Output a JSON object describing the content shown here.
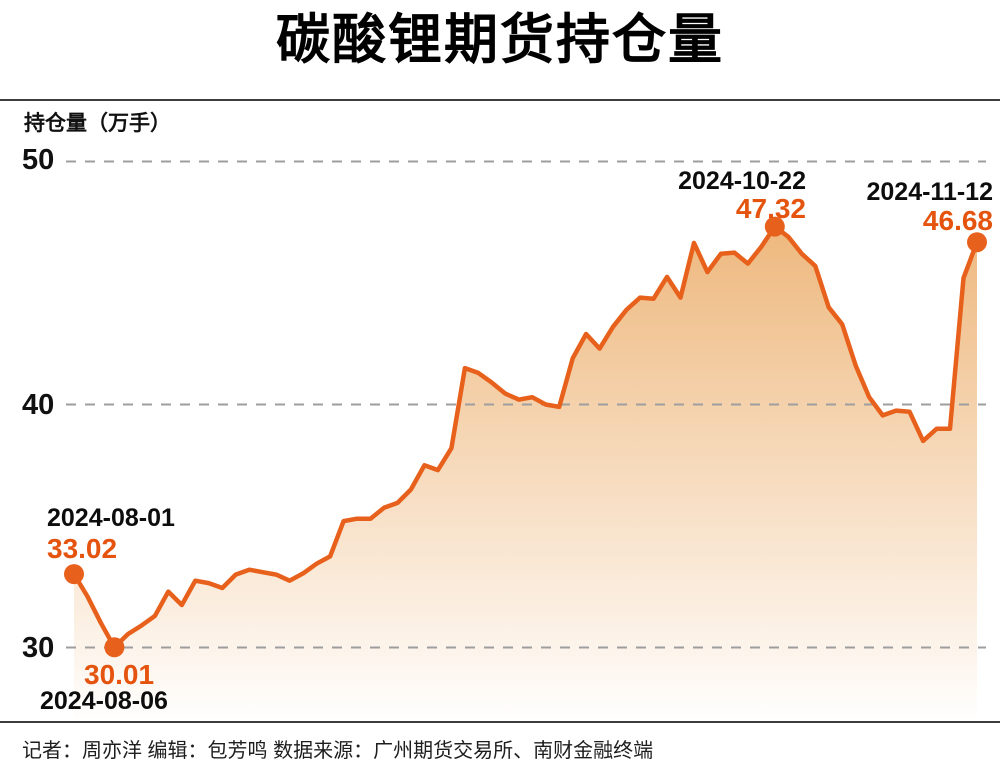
{
  "title": "碳酸锂期货持仓量",
  "y_axis": {
    "label": "持仓量（万手）",
    "ticks": [
      "50",
      "40",
      "30"
    ]
  },
  "annotations": [
    {
      "date": "2024-08-01",
      "value": "33.02"
    },
    {
      "date": "2024-08-06",
      "value": "30.01"
    },
    {
      "date": "2024-10-22",
      "value": "47.32"
    },
    {
      "date": "2024-11-12",
      "value": "46.68"
    }
  ],
  "footer": "记者：周亦洋  编辑：包芳鸣  数据来源：广州期货交易所、南财金融终端",
  "colors": {
    "line": "#e8611c",
    "marker": "#e8611c",
    "value_text": "#e5540e",
    "date_text": "#0d0d0d",
    "grid": "#9e9e9e",
    "area_top": "#eeb87e",
    "area_bottom": "#fffefd",
    "divider": "#3d3d3d",
    "background": "#ffffff"
  },
  "chart_data": {
    "type": "area",
    "title": "碳酸锂期货持仓量",
    "ylabel": "持仓量（万手）",
    "yticks": [
      30,
      40,
      50
    ],
    "ylim": [
      28.8,
      50.5
    ],
    "x_range": [
      "2024-08-01",
      "2024-11-12"
    ],
    "x_unit": "trading-days",
    "grid": "horizontal-dashed",
    "legend": "none",
    "values": [
      33.02,
      32.1,
      31.0,
      30.01,
      30.55,
      30.9,
      31.3,
      32.3,
      31.75,
      32.75,
      32.65,
      32.45,
      33.0,
      33.2,
      33.1,
      33.0,
      32.75,
      33.05,
      33.45,
      33.75,
      35.2,
      35.3,
      35.3,
      35.75,
      35.95,
      36.5,
      37.5,
      37.3,
      38.2,
      41.5,
      41.3,
      40.9,
      40.45,
      40.2,
      40.3,
      40.0,
      39.9,
      41.9,
      42.9,
      42.3,
      43.2,
      43.9,
      44.4,
      44.35,
      45.25,
      44.4,
      46.65,
      45.45,
      46.2,
      46.25,
      45.8,
      46.5,
      47.32,
      46.9,
      46.2,
      45.7,
      44.0,
      43.3,
      41.6,
      40.3,
      39.55,
      39.75,
      39.7,
      38.5,
      39.0,
      39.0,
      45.2,
      46.68
    ],
    "highlights": [
      {
        "index": 0,
        "date": "2024-08-01",
        "value": 33.02
      },
      {
        "index": 3,
        "date": "2024-08-06",
        "value": 30.01
      },
      {
        "index": 52,
        "date": "2024-10-22",
        "value": 47.32
      },
      {
        "index": 67,
        "date": "2024-11-12",
        "value": 46.68
      }
    ]
  }
}
